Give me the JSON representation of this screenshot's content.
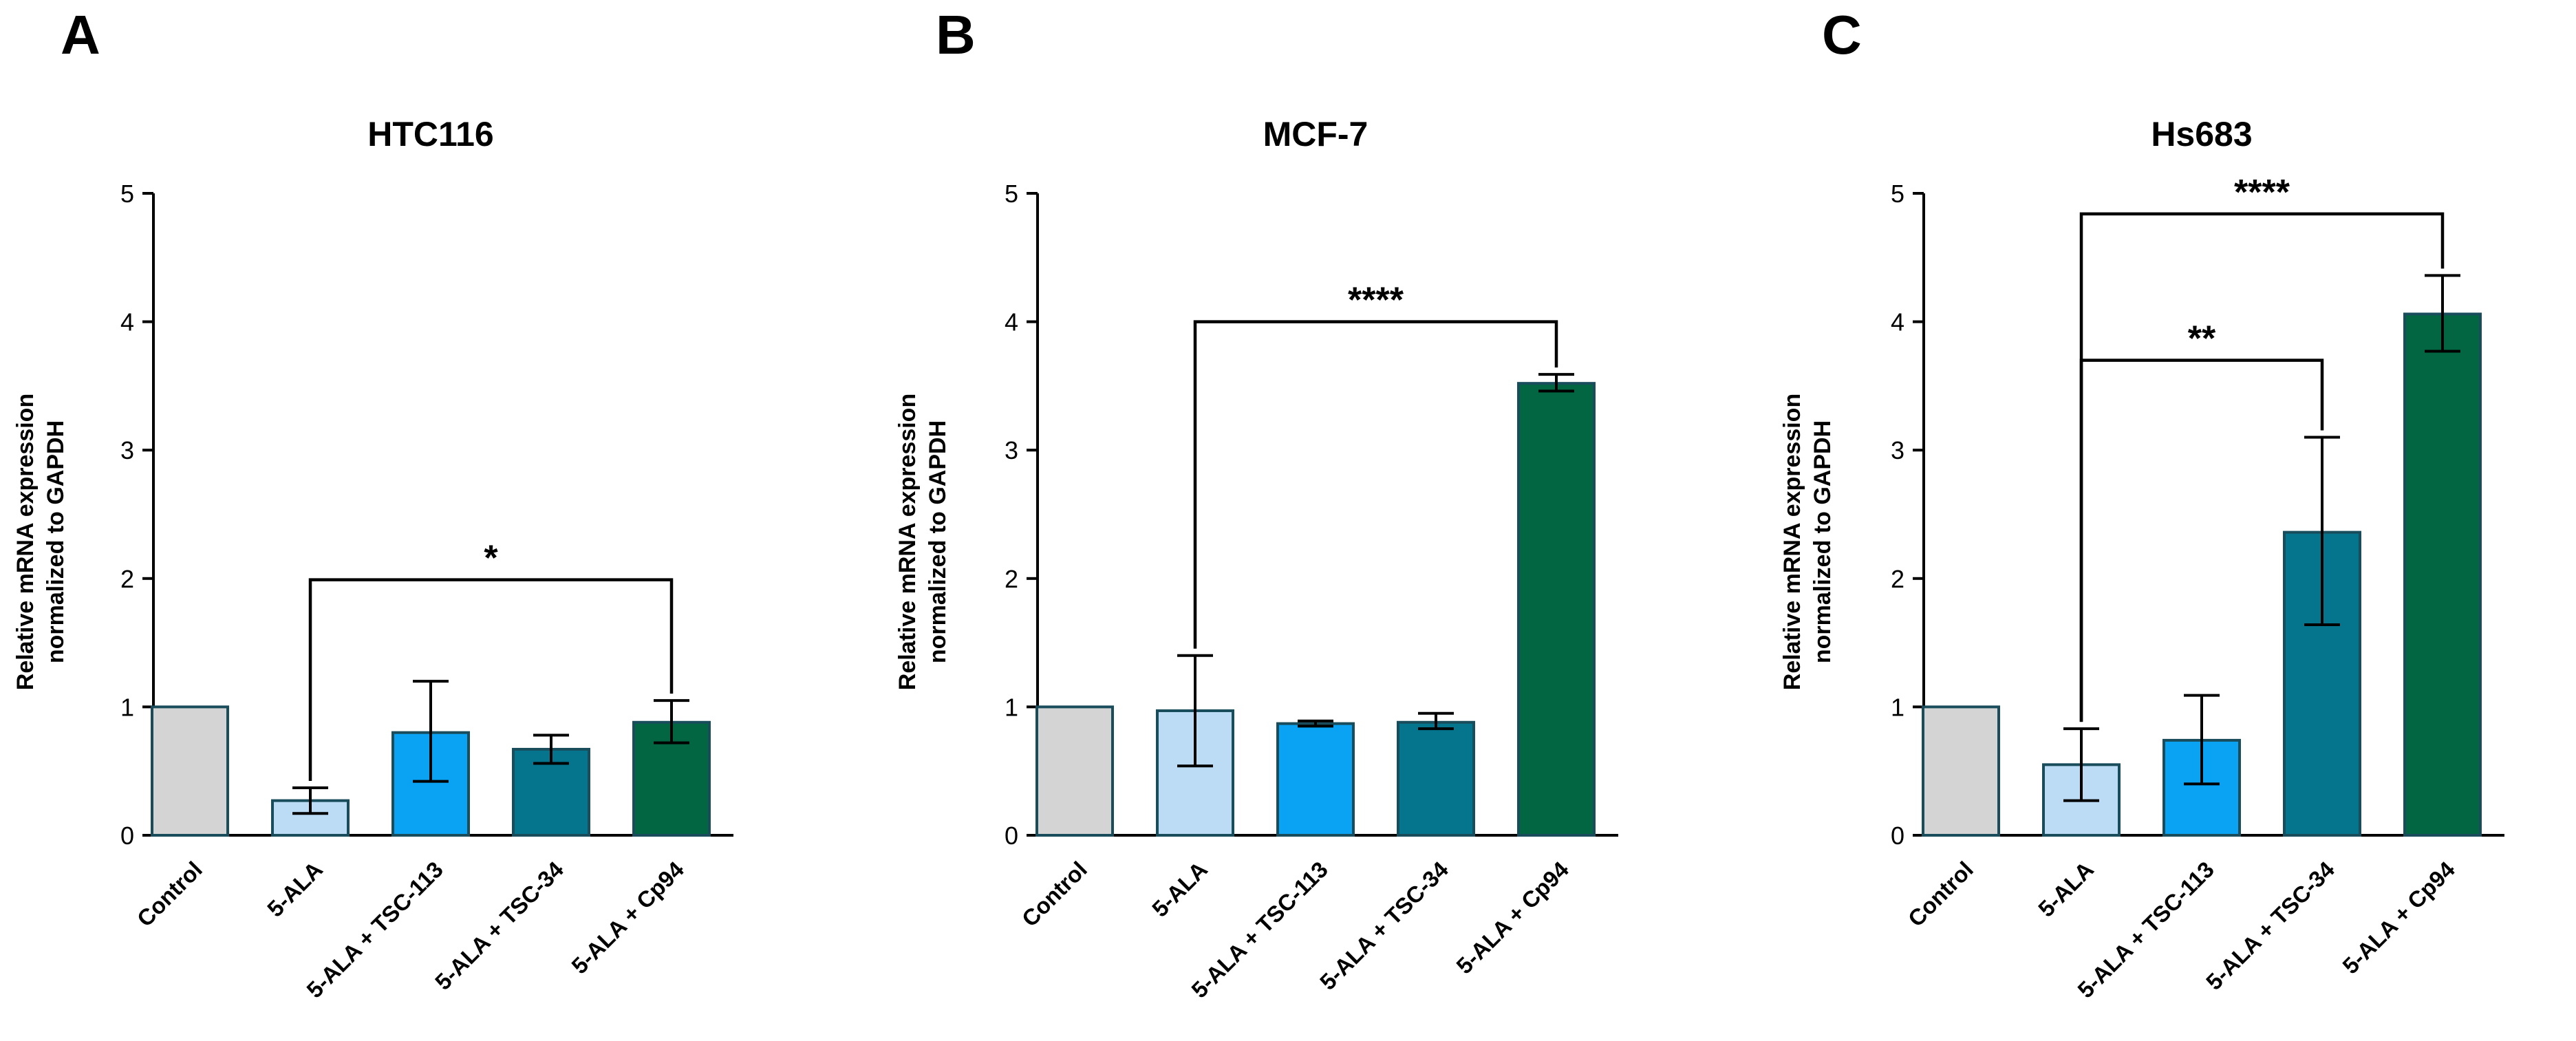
{
  "colors": {
    "Control": "#d4d4d4",
    "5-ALA": "#bcdcf6",
    "5-ALA + TSC-113": "#0aa2f2",
    "5-ALA + TSC-34": "#05758d",
    "5-ALA + Cp94": "#016641",
    "bar_outline": "#1a4d5c"
  },
  "chart_data": [
    {
      "panel": "A",
      "type": "bar",
      "title": "HTC116",
      "ylabel": [
        "Relative mRNA expression",
        "normalized to GAPDH"
      ],
      "xlabel": "",
      "ylim": [
        0,
        5
      ],
      "yticks": [
        "0",
        "1",
        "2",
        "3",
        "4",
        "5"
      ],
      "categories": [
        "Control",
        "5-ALA",
        "5-ALA + TSC-113",
        "5-ALA + TSC-34",
        "5-ALA + Cp94"
      ],
      "values": [
        1.0,
        0.27,
        0.8,
        0.67,
        0.88
      ],
      "errors": [
        [
          1.0,
          1.0
        ],
        [
          0.17,
          0.37
        ],
        [
          0.42,
          1.2
        ],
        [
          0.56,
          0.78
        ],
        [
          0.72,
          1.05
        ]
      ],
      "significance": [
        {
          "from": "5-ALA",
          "to": "5-ALA + Cp94",
          "label": "*",
          "y": 1.99
        }
      ]
    },
    {
      "panel": "B",
      "type": "bar",
      "title": "MCF-7",
      "ylabel": [
        "Relative mRNA expression",
        "normalized to GAPDH"
      ],
      "xlabel": "",
      "ylim": [
        0,
        5
      ],
      "yticks": [
        "0",
        "1",
        "2",
        "3",
        "4",
        "5"
      ],
      "categories": [
        "Control",
        "5-ALA",
        "5-ALA + TSC-113",
        "5-ALA + TSC-34",
        "5-ALA + Cp94"
      ],
      "values": [
        1.0,
        0.97,
        0.87,
        0.88,
        3.52
      ],
      "errors": [
        [
          1.0,
          1.0
        ],
        [
          0.54,
          1.4
        ],
        [
          0.85,
          0.89
        ],
        [
          0.83,
          0.95
        ],
        [
          3.46,
          3.59
        ]
      ],
      "significance": [
        {
          "from": "5-ALA",
          "to": "5-ALA + Cp94",
          "label": "****",
          "y": 4.0
        }
      ]
    },
    {
      "panel": "C",
      "type": "bar",
      "title": "Hs683",
      "ylabel": [
        "Relative mRNA expression",
        "normalized to GAPDH"
      ],
      "xlabel": "",
      "ylim": [
        0,
        5
      ],
      "yticks": [
        "0",
        "1",
        "2",
        "3",
        "4",
        "5"
      ],
      "categories": [
        "Control",
        "5-ALA",
        "5-ALA + TSC-113",
        "5-ALA + TSC-34",
        "5-ALA + Cp94"
      ],
      "values": [
        1.0,
        0.55,
        0.74,
        2.36,
        4.06
      ],
      "errors": [
        [
          1.0,
          1.0
        ],
        [
          0.27,
          0.83
        ],
        [
          0.4,
          1.09
        ],
        [
          1.64,
          3.1
        ],
        [
          3.77,
          4.36
        ]
      ],
      "significance": [
        {
          "from": "5-ALA",
          "to": "5-ALA + TSC-34",
          "label": "**",
          "y": 3.7
        },
        {
          "from": "5-ALA",
          "to": "5-ALA + Cp94",
          "label": "****",
          "y": 4.84
        }
      ]
    }
  ]
}
